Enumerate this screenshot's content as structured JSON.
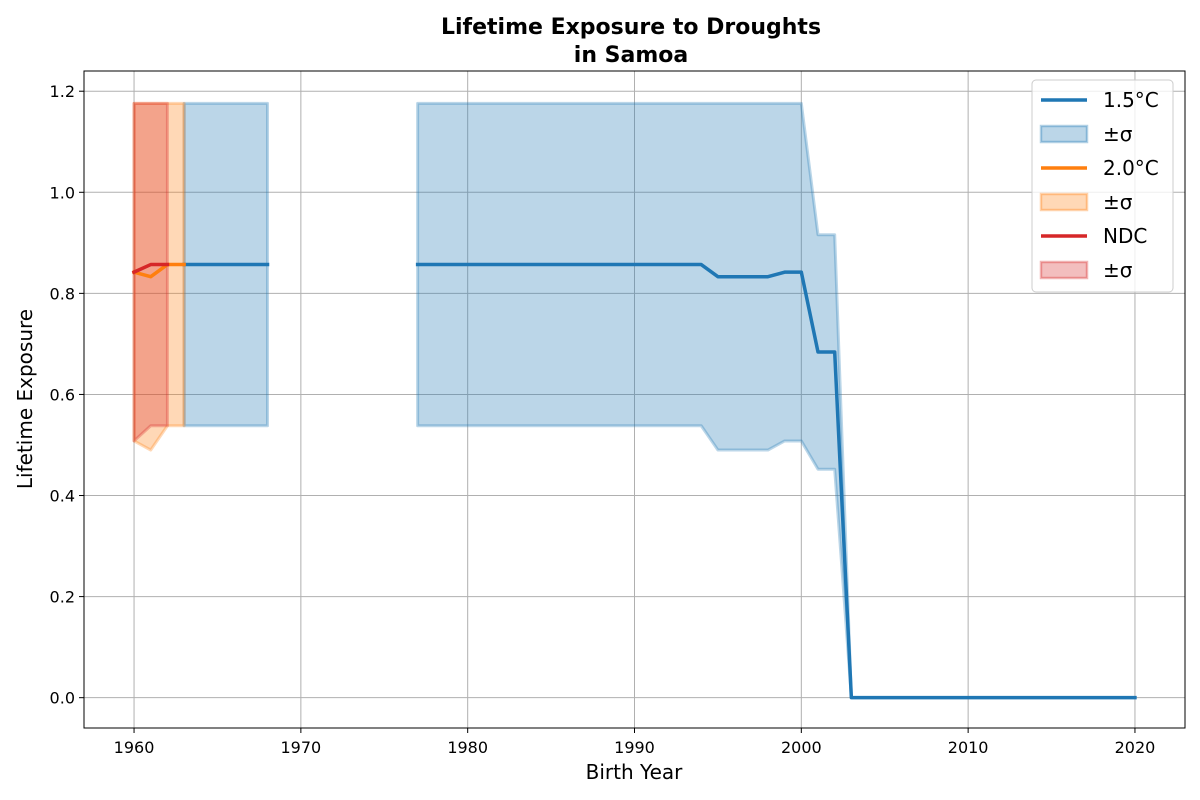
{
  "chart_data": {
    "type": "line",
    "title_lines": [
      "Lifetime Exposure to Droughts",
      "in Samoa"
    ],
    "xlabel": "Birth Year",
    "ylabel": "Lifetime Exposure",
    "xlim": [
      1957,
      2023
    ],
    "ylim": [
      -0.06,
      1.24
    ],
    "xticks": [
      1960,
      1970,
      1980,
      1990,
      2000,
      2010,
      2020
    ],
    "yticks": [
      0.0,
      0.2,
      0.4,
      0.6,
      0.8,
      1.0,
      1.2
    ],
    "ytick_labels": [
      "0.0",
      "0.2",
      "0.4",
      "0.6",
      "0.8",
      "1.0",
      "1.2"
    ],
    "grid": true,
    "legend_position": "top-right",
    "series": [
      {
        "name": "1.5°C",
        "band_label": "±σ",
        "color": "#1f77b4",
        "segments": [
          {
            "x": [
              1963,
              1964,
              1965,
              1966,
              1967,
              1968
            ],
            "y": [
              0.857,
              0.857,
              0.857,
              0.857,
              0.857,
              0.857
            ],
            "lower": [
              0.538,
              0.538,
              0.538,
              0.538,
              0.538,
              0.538
            ],
            "upper": [
              1.176,
              1.176,
              1.176,
              1.176,
              1.176,
              1.176
            ]
          },
          {
            "x": [
              1977,
              1980,
              1985,
              1990,
              1994,
              1995,
              1996,
              1997,
              1998,
              1999,
              2000,
              2001,
              2002,
              2003,
              2005,
              2010,
              2015,
              2020
            ],
            "y": [
              0.857,
              0.857,
              0.857,
              0.857,
              0.857,
              0.833,
              0.833,
              0.833,
              0.833,
              0.842,
              0.842,
              0.684,
              0.684,
              0.0,
              0.0,
              0.0,
              0.0,
              0.0
            ],
            "lower": [
              0.538,
              0.538,
              0.538,
              0.538,
              0.538,
              0.49,
              0.49,
              0.49,
              0.49,
              0.508,
              0.508,
              0.452,
              0.452,
              0.0,
              0.0,
              0.0,
              0.0,
              0.0
            ],
            "upper": [
              1.176,
              1.176,
              1.176,
              1.176,
              1.176,
              1.176,
              1.176,
              1.176,
              1.176,
              1.176,
              1.176,
              0.916,
              0.916,
              0.0,
              0.0,
              0.0,
              0.0,
              0.0
            ]
          }
        ]
      },
      {
        "name": "2.0°C",
        "band_label": "±σ",
        "color": "#ff7f0e",
        "segments": [
          {
            "x": [
              1960,
              1961,
              1962,
              1963
            ],
            "y": [
              0.842,
              0.833,
              0.857,
              0.857
            ],
            "lower": [
              0.508,
              0.49,
              0.538,
              0.538
            ],
            "upper": [
              1.176,
              1.176,
              1.176,
              1.176
            ]
          }
        ]
      },
      {
        "name": "NDC",
        "band_label": "±σ",
        "color": "#d62728",
        "segments": [
          {
            "x": [
              1960,
              1961,
              1962
            ],
            "y": [
              0.842,
              0.857,
              0.857
            ],
            "lower": [
              0.508,
              0.538,
              0.538
            ],
            "upper": [
              1.176,
              1.176,
              1.176
            ]
          }
        ]
      }
    ]
  }
}
